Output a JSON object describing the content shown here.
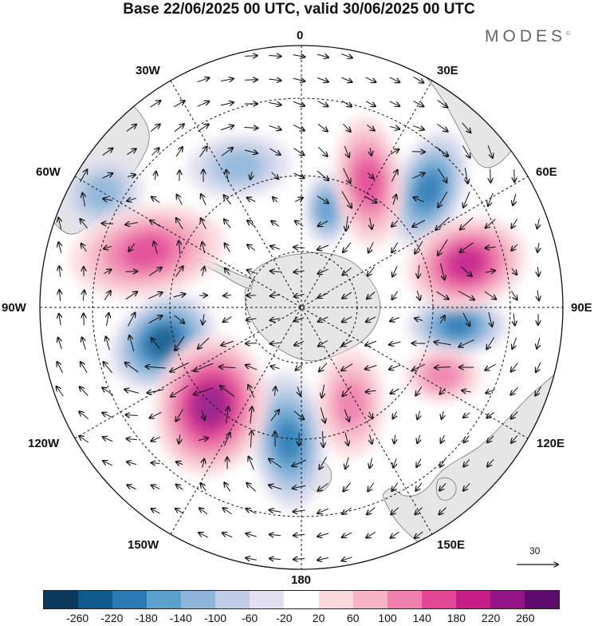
{
  "title": "Base 22/06/2025 00 UTC, valid 30/06/2025 00 UTC",
  "brand": "MODES",
  "brand_mark": "©",
  "map": {
    "projection": "south polar stereographic",
    "longitude_labels": {
      "top": "0",
      "top_right": "30E",
      "right_upper": "60E",
      "right": "90E",
      "right_lower": "120E",
      "bottom_right": "150E",
      "bottom": "180",
      "bottom_left": "150W",
      "left_lower": "120W",
      "left": "90W",
      "left_upper": "60W",
      "top_left": "30W"
    },
    "field": "anomaly",
    "vector_reference": {
      "value": "30",
      "icon": "right-arrow-icon"
    },
    "land_color": "#e6e6e6",
    "coast_color": "#777777"
  },
  "colorbar": {
    "colors": [
      "#0b3a5e",
      "#0f5a8c",
      "#2b7ab5",
      "#5b9fcd",
      "#8fb6da",
      "#c0cde6",
      "#e2e0f0",
      "#ffffff",
      "#fbd9dc",
      "#f6b3c5",
      "#ef7fac",
      "#e24694",
      "#c51e86",
      "#931586",
      "#5d0c6e"
    ],
    "tick_labels": [
      "-260",
      "-220",
      "-180",
      "-140",
      "-100",
      "-60",
      "-20",
      "20",
      "60",
      "100",
      "140",
      "180",
      "220",
      "260"
    ]
  },
  "anomaly_centers": [
    {
      "sign": "negative",
      "level": -180
    },
    {
      "sign": "negative",
      "level": -100
    },
    {
      "sign": "negative",
      "level": -140
    },
    {
      "sign": "negative",
      "level": -220
    },
    {
      "sign": "negative",
      "level": -180
    },
    {
      "sign": "negative",
      "level": -180
    },
    {
      "sign": "negative",
      "level": -100
    },
    {
      "sign": "positive",
      "level": 140
    },
    {
      "sign": "positive",
      "level": 140
    },
    {
      "sign": "positive",
      "level": 180
    },
    {
      "sign": "positive",
      "level": 220
    },
    {
      "sign": "positive",
      "level": 100
    },
    {
      "sign": "positive",
      "level": 100
    }
  ]
}
